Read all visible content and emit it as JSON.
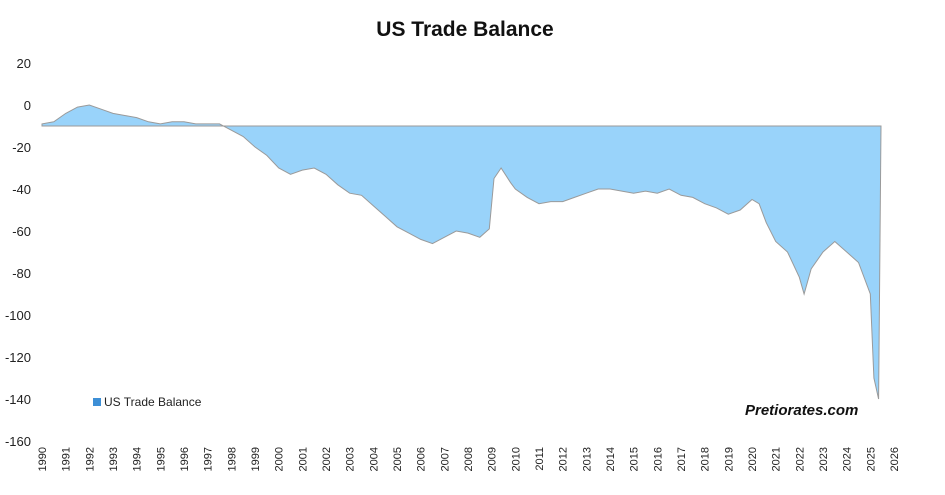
{
  "chart_data": {
    "type": "bar",
    "title": "US Trade Balance",
    "xlabel": "",
    "ylabel": "",
    "ylim": [
      -160,
      20
    ],
    "yticks": [
      20,
      0,
      -20,
      -40,
      -60,
      -80,
      -100,
      -120,
      -140,
      -160
    ],
    "xlim": [
      1990,
      2026
    ],
    "xticks": [
      "1990",
      "1991",
      "1992",
      "1993",
      "1994",
      "1995",
      "1996",
      "1997",
      "1998",
      "1999",
      "2000",
      "2001",
      "2002",
      "2003",
      "2004",
      "2005",
      "2006",
      "2007",
      "2008",
      "2009",
      "2010",
      "2011",
      "2012",
      "2013",
      "2014",
      "2015",
      "2016",
      "2017",
      "2018",
      "2019",
      "2020",
      "2021",
      "2022",
      "2023",
      "2024",
      "2025",
      "2026"
    ],
    "baseline": -10,
    "grid": false,
    "legend": "bottom-left",
    "series": [
      {
        "name": "US Trade Balance",
        "color": "#99d3fa",
        "points": [
          [
            1990.0,
            -9
          ],
          [
            1990.5,
            -8
          ],
          [
            1991.0,
            -4
          ],
          [
            1991.5,
            -1
          ],
          [
            1992.0,
            0
          ],
          [
            1992.5,
            -2
          ],
          [
            1993.0,
            -4
          ],
          [
            1993.5,
            -5
          ],
          [
            1994.0,
            -6
          ],
          [
            1994.5,
            -8
          ],
          [
            1995.0,
            -9
          ],
          [
            1995.5,
            -8
          ],
          [
            1996.0,
            -8
          ],
          [
            1996.5,
            -9
          ],
          [
            1997.0,
            -9
          ],
          [
            1997.5,
            -9
          ],
          [
            1998.0,
            -12
          ],
          [
            1998.5,
            -15
          ],
          [
            1999.0,
            -20
          ],
          [
            1999.5,
            -24
          ],
          [
            2000.0,
            -30
          ],
          [
            2000.5,
            -33
          ],
          [
            2001.0,
            -31
          ],
          [
            2001.5,
            -30
          ],
          [
            2002.0,
            -33
          ],
          [
            2002.5,
            -38
          ],
          [
            2003.0,
            -42
          ],
          [
            2003.5,
            -43
          ],
          [
            2004.0,
            -48
          ],
          [
            2004.5,
            -53
          ],
          [
            2005.0,
            -58
          ],
          [
            2005.5,
            -61
          ],
          [
            2006.0,
            -64
          ],
          [
            2006.5,
            -66
          ],
          [
            2007.0,
            -63
          ],
          [
            2007.5,
            -60
          ],
          [
            2008.0,
            -61
          ],
          [
            2008.5,
            -63
          ],
          [
            2008.9,
            -59
          ],
          [
            2009.1,
            -35
          ],
          [
            2009.4,
            -30
          ],
          [
            2009.8,
            -37
          ],
          [
            2010.0,
            -40
          ],
          [
            2010.5,
            -44
          ],
          [
            2011.0,
            -47
          ],
          [
            2011.5,
            -46
          ],
          [
            2012.0,
            -46
          ],
          [
            2012.5,
            -44
          ],
          [
            2013.0,
            -42
          ],
          [
            2013.5,
            -40
          ],
          [
            2014.0,
            -40
          ],
          [
            2014.5,
            -41
          ],
          [
            2015.0,
            -42
          ],
          [
            2015.5,
            -41
          ],
          [
            2016.0,
            -42
          ],
          [
            2016.5,
            -40
          ],
          [
            2017.0,
            -43
          ],
          [
            2017.5,
            -44
          ],
          [
            2018.0,
            -47
          ],
          [
            2018.5,
            -49
          ],
          [
            2019.0,
            -52
          ],
          [
            2019.5,
            -50
          ],
          [
            2020.0,
            -45
          ],
          [
            2020.3,
            -47
          ],
          [
            2020.6,
            -56
          ],
          [
            2021.0,
            -65
          ],
          [
            2021.5,
            -70
          ],
          [
            2022.0,
            -82
          ],
          [
            2022.2,
            -90
          ],
          [
            2022.5,
            -78
          ],
          [
            2023.0,
            -70
          ],
          [
            2023.5,
            -65
          ],
          [
            2024.0,
            -70
          ],
          [
            2024.5,
            -75
          ],
          [
            2025.0,
            -90
          ],
          [
            2025.15,
            -130
          ],
          [
            2025.35,
            -140
          ],
          [
            2025.45,
            -10
          ]
        ]
      }
    ],
    "annotation": "Pretiorates.com"
  }
}
